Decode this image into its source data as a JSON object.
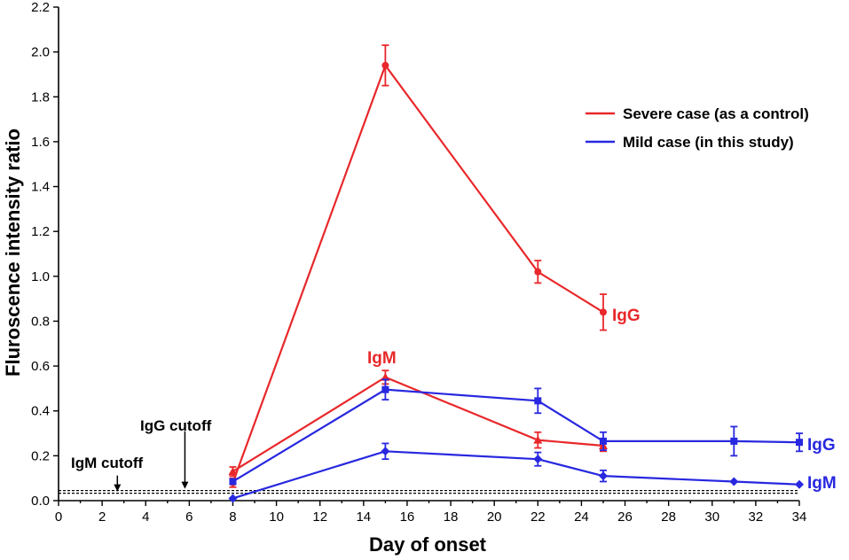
{
  "colors": {
    "severe": "#e8282b",
    "mild": "#2828e0",
    "axis": "#000000"
  },
  "chart_data": {
    "type": "line",
    "xlabel": "Day of onset",
    "ylabel": "Fluroscence intensity ratio",
    "xlim": [
      0,
      34
    ],
    "ylim": [
      0,
      2.2
    ],
    "xticks": [
      0,
      2,
      4,
      6,
      8,
      10,
      12,
      14,
      16,
      18,
      20,
      22,
      24,
      26,
      28,
      30,
      32,
      34
    ],
    "yticks": [
      0.0,
      0.2,
      0.4,
      0.6,
      0.8,
      1.0,
      1.2,
      1.4,
      1.6,
      1.8,
      2.0,
      2.2
    ],
    "legend": [
      {
        "label": "Severe case (as a control)",
        "color": "#e8282b"
      },
      {
        "label": "Mild case (in this study)",
        "color": "#2828e0"
      }
    ],
    "series": [
      {
        "name": "Severe case IgG",
        "group": "severe",
        "marker": "circle",
        "x": [
          8,
          15,
          22,
          25
        ],
        "y": [
          0.08,
          1.94,
          1.02,
          0.84
        ],
        "err": [
          0.02,
          0.09,
          0.05,
          0.08
        ]
      },
      {
        "name": "Severe case IgM",
        "group": "severe",
        "marker": "triangle",
        "x": [
          8,
          15,
          22,
          25
        ],
        "y": [
          0.13,
          0.55,
          0.27,
          0.245
        ],
        "err": [
          0.02,
          0.03,
          0.035,
          0.025
        ]
      },
      {
        "name": "Mild case IgG",
        "group": "mild",
        "marker": "square",
        "x": [
          8,
          15,
          22,
          25,
          31,
          34
        ],
        "y": [
          0.085,
          0.495,
          0.445,
          0.265,
          0.265,
          0.26
        ],
        "err": [
          0.01,
          0.045,
          0.055,
          0.04,
          0.065,
          0.04
        ]
      },
      {
        "name": "Mild case IgM",
        "group": "mild",
        "marker": "diamond",
        "x": [
          8,
          15,
          22,
          25,
          31,
          34
        ],
        "y": [
          0.01,
          0.22,
          0.185,
          0.11,
          0.085,
          0.072
        ],
        "err": [
          0.0,
          0.035,
          0.03,
          0.025,
          0.0,
          0.0
        ]
      }
    ],
    "annotations": {
      "severe_igg": "IgG",
      "severe_igm": "IgM",
      "mild_igg": "IgG",
      "mild_igm": "IgM",
      "igm_cutoff": "IgM cutoff",
      "igg_cutoff": "IgG cutoff"
    },
    "cutoffs": [
      {
        "name": "IgM cutoff",
        "value": 0.033,
        "arrow_day": 2.7
      },
      {
        "name": "IgG cutoff",
        "value": 0.045,
        "arrow_day": 5.8
      }
    ]
  }
}
